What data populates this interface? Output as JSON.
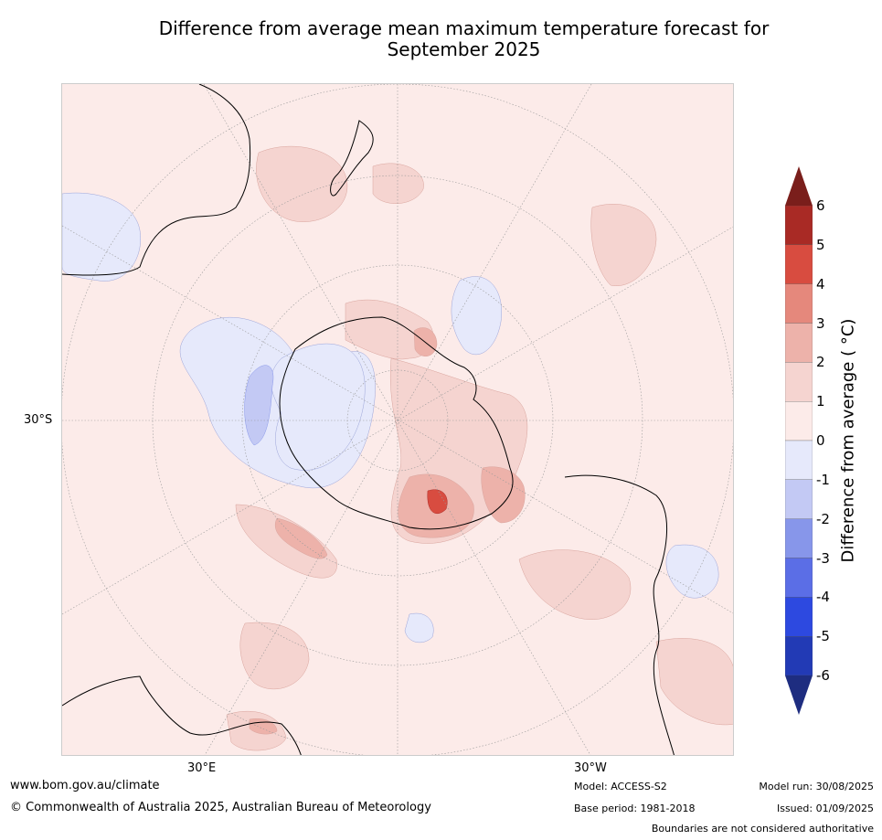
{
  "title_line1": "Difference from average mean maximum temperature forecast for",
  "title_line2": "September 2025",
  "map": {
    "projection": "south-polar-stereographic",
    "land_outline_color": "#000000",
    "graticule_color": "#999999",
    "lat_label": "30°S",
    "lon_labels": [
      "30°E",
      "30°W"
    ]
  },
  "legend": {
    "title": "Difference from average ( °C)",
    "ticks": [
      "6",
      "5",
      "4",
      "3",
      "2",
      "1",
      "0",
      "-1",
      "-2",
      "-3",
      "-4",
      "-5",
      "-6"
    ],
    "bins": [
      {
        "range": "5 to 6",
        "color": "#a92a25"
      },
      {
        "range": "4 to 5",
        "color": "#d84c40"
      },
      {
        "range": "3 to 4",
        "color": "#e5887c"
      },
      {
        "range": "2 to 3",
        "color": "#edb2aa"
      },
      {
        "range": "1 to 2",
        "color": "#f5d4d0"
      },
      {
        "range": "0 to 1",
        "color": "#fcebe9"
      },
      {
        "range": "-1 to 0",
        "color": "#e6e9fb"
      },
      {
        "range": "-2 to -1",
        "color": "#c3c9f4"
      },
      {
        "range": "-3 to -2",
        "color": "#8796ea"
      },
      {
        "range": "-4 to -3",
        "color": "#5b6ee6"
      },
      {
        "range": "-5 to -4",
        "color": "#2d49e0"
      },
      {
        "range": "-6 to -5",
        "color": "#223ab5"
      }
    ],
    "over_color": "#7a1e1b",
    "under_color": "#1e2d80"
  },
  "footer": {
    "website": "www.bom.gov.au/climate",
    "copyright": "© Commonwealth of Australia 2025, Australian Bureau of Meteorology",
    "model": "Model: ACCESS-S2",
    "base_period": "Base period: 1981-2018",
    "model_run": "Model run: 30/08/2025",
    "issued": "Issued: 01/09/2025",
    "disclaimer": "Boundaries are not considered authoritative"
  }
}
